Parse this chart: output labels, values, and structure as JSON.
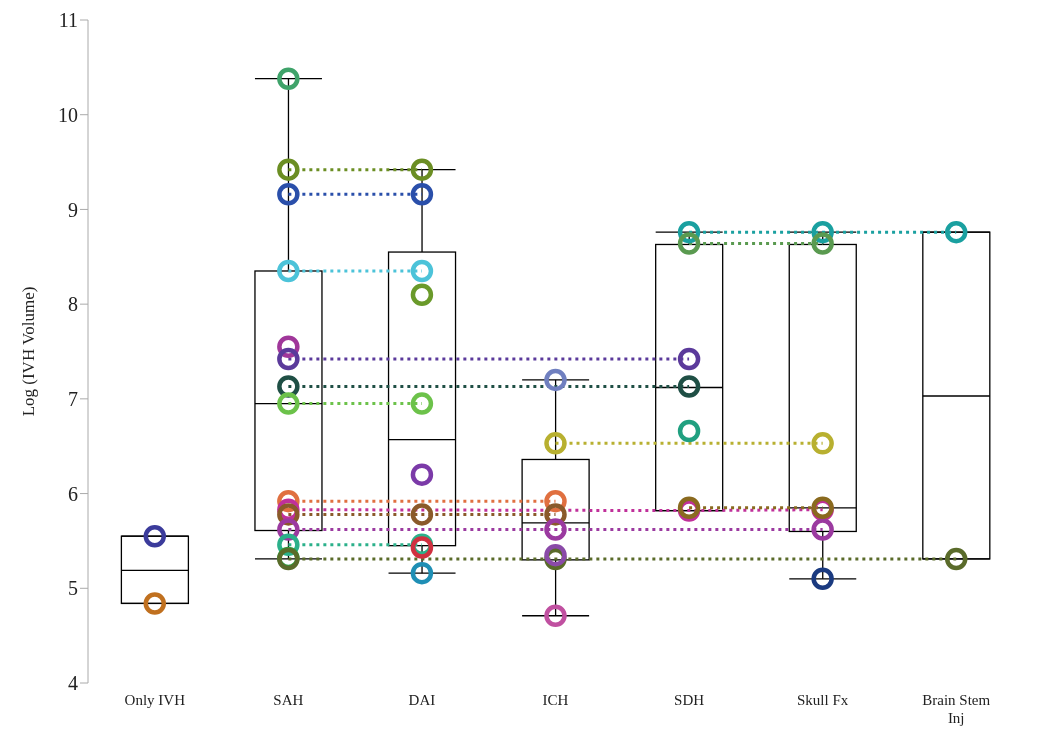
{
  "chart_data": {
    "type": "box",
    "ylabel": "Log (IVH Volume)",
    "categories": [
      "Only IVH",
      "SAH",
      "DAI",
      "ICH",
      "SDH",
      "Skull Fx",
      "Brain Stem Inj"
    ],
    "boxes": [
      {
        "low": 4.84,
        "q1": 4.84,
        "median": 5.19,
        "q3": 5.55,
        "high": 5.55
      },
      {
        "low": 5.31,
        "q1": 5.61,
        "median": 6.95,
        "q3": 8.35,
        "high": 10.38
      },
      {
        "low": 5.16,
        "q1": 5.45,
        "median": 6.57,
        "q3": 8.55,
        "high": 9.42
      },
      {
        "low": 4.71,
        "q1": 5.3,
        "median": 5.69,
        "q3": 6.36,
        "high": 7.2
      },
      {
        "low": 5.82,
        "q1": 5.82,
        "median": 7.12,
        "q3": 8.63,
        "high": 8.76
      },
      {
        "low": 5.1,
        "q1": 5.6,
        "median": 5.85,
        "q3": 8.63,
        "high": 8.76
      },
      {
        "low": 5.31,
        "q1": 5.31,
        "median": 7.03,
        "q3": 8.76,
        "high": 8.76
      }
    ],
    "ylim": [
      4,
      11
    ],
    "yticks": [
      4,
      5,
      6,
      7,
      8,
      9,
      10,
      11
    ],
    "grid": false,
    "legend": false,
    "marker": "circle",
    "line_style": "dotted",
    "series": [
      {
        "type": "line",
        "color": "#3b3b9b",
        "values": [
          5.55,
          null,
          null,
          null,
          null,
          null,
          null
        ]
      },
      {
        "type": "line",
        "color": "#c0701f",
        "values": [
          4.84,
          null,
          null,
          null,
          null,
          null,
          null
        ]
      },
      {
        "type": "line",
        "color": "#3fa36a",
        "values": [
          null,
          10.38,
          null,
          null,
          null,
          null,
          null
        ]
      },
      {
        "type": "line",
        "color": "#6b8e23",
        "values": [
          null,
          9.42,
          9.42,
          null,
          null,
          null,
          null
        ]
      },
      {
        "type": "line",
        "color": "#2a4faa",
        "values": [
          null,
          9.16,
          9.16,
          null,
          null,
          null,
          null
        ]
      },
      {
        "type": "line",
        "color": "#4cc3d9",
        "values": [
          null,
          8.35,
          8.35,
          null,
          null,
          null,
          null
        ]
      },
      {
        "type": "line",
        "color": "#a0379a",
        "values": [
          null,
          7.55,
          null,
          null,
          null,
          null,
          null
        ]
      },
      {
        "type": "line",
        "color": "#5b3a9b",
        "values": [
          null,
          7.42,
          null,
          null,
          7.42,
          null,
          null
        ]
      },
      {
        "type": "line",
        "color": "#1f4f45",
        "values": [
          null,
          7.13,
          null,
          null,
          7.13,
          null,
          null
        ]
      },
      {
        "type": "line",
        "color": "#6cc24a",
        "values": [
          null,
          6.95,
          6.95,
          null,
          null,
          null,
          null
        ]
      },
      {
        "type": "line",
        "color": "#e07040",
        "values": [
          null,
          5.92,
          null,
          5.92,
          null,
          null,
          null
        ]
      },
      {
        "type": "line",
        "color": "#c0309a",
        "values": [
          null,
          5.83,
          null,
          null,
          5.82,
          5.83,
          null
        ]
      },
      {
        "type": "line",
        "color": "#8a5a2a",
        "values": [
          null,
          5.78,
          5.78,
          5.78,
          null,
          null,
          null
        ]
      },
      {
        "type": "line",
        "color": "#9b3aa0",
        "values": [
          null,
          5.62,
          null,
          5.62,
          null,
          5.62,
          null
        ]
      },
      {
        "type": "line",
        "color": "#2bb08a",
        "values": [
          null,
          5.46,
          5.46,
          null,
          null,
          null,
          null
        ]
      },
      {
        "type": "line",
        "color": "#2e9e3e",
        "values": [
          null,
          5.32,
          null,
          null,
          null,
          null,
          null
        ]
      },
      {
        "type": "line",
        "color": "#5a6b2a",
        "values": [
          null,
          5.31,
          null,
          5.31,
          null,
          null,
          5.31
        ]
      },
      {
        "type": "line",
        "color": "#6a9a2a",
        "values": [
          null,
          null,
          8.1,
          null,
          null,
          null,
          null
        ]
      },
      {
        "type": "line",
        "color": "#7b3aa8",
        "values": [
          null,
          null,
          6.2,
          null,
          null,
          null,
          null
        ]
      },
      {
        "type": "line",
        "color": "#d03040",
        "values": [
          null,
          null,
          5.43,
          null,
          null,
          null,
          null
        ]
      },
      {
        "type": "line",
        "color": "#1f8fb5",
        "values": [
          null,
          null,
          5.16,
          null,
          null,
          null,
          null
        ]
      },
      {
        "type": "line",
        "color": "#7080c0",
        "values": [
          null,
          null,
          null,
          7.2,
          null,
          null,
          null
        ]
      },
      {
        "type": "line",
        "color": "#b8b030",
        "values": [
          null,
          null,
          null,
          6.53,
          null,
          6.53,
          null
        ]
      },
      {
        "type": "line",
        "color": "#8a4aa8",
        "values": [
          null,
          null,
          null,
          5.35,
          null,
          null,
          null
        ]
      },
      {
        "type": "line",
        "color": "#c050a0",
        "values": [
          null,
          null,
          null,
          4.71,
          null,
          null,
          null
        ]
      },
      {
        "type": "line",
        "color": "#1aa0a0",
        "values": [
          null,
          null,
          null,
          null,
          8.76,
          8.76,
          8.76
        ]
      },
      {
        "type": "line",
        "color": "#5a9a50",
        "values": [
          null,
          null,
          null,
          null,
          8.64,
          8.64,
          null
        ]
      },
      {
        "type": "line",
        "color": "#20a080",
        "values": [
          null,
          null,
          null,
          null,
          6.66,
          null,
          null
        ]
      },
      {
        "type": "line",
        "color": "#8a6a1f",
        "values": [
          null,
          null,
          null,
          null,
          5.85,
          5.85,
          null
        ]
      },
      {
        "type": "line",
        "color": "#1a3a80",
        "values": [
          null,
          null,
          null,
          null,
          null,
          5.1,
          null
        ]
      }
    ]
  }
}
